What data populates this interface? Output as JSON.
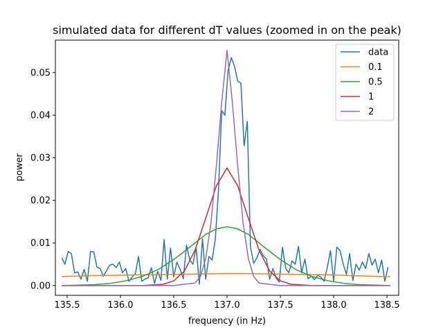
{
  "chart_data": {
    "type": "line",
    "title": "simulated data for different dT values (zoomed in on the peak)",
    "xlabel": "frequency (in Hz)",
    "ylabel": "power",
    "xlim": [
      135.39,
      138.61
    ],
    "ylim": [
      -0.0023,
      0.0576
    ],
    "xticks": [
      135.5,
      136.0,
      136.5,
      137.0,
      137.5,
      138.0,
      138.5
    ],
    "xtick_labels": [
      "135.5",
      "136.0",
      "136.5",
      "137.0",
      "137.5",
      "138.0",
      "138.5"
    ],
    "yticks": [
      0.0,
      0.01,
      0.02,
      0.03,
      0.04,
      0.05
    ],
    "ytick_labels": [
      "0.00",
      "0.01",
      "0.02",
      "0.03",
      "0.04",
      "0.05"
    ],
    "grid": false,
    "legend_position": "top-right",
    "series": [
      {
        "name": "data",
        "color": "#1f77b4",
        "x": [
          135.45,
          135.48,
          135.51,
          135.54,
          135.57,
          135.6,
          135.63,
          135.66,
          135.69,
          135.72,
          135.75,
          135.78,
          135.81,
          135.84,
          135.87,
          135.9,
          135.93,
          135.96,
          135.99,
          136.02,
          136.05,
          136.08,
          136.11,
          136.14,
          136.17,
          136.2,
          136.23,
          136.26,
          136.29,
          136.32,
          136.35,
          136.38,
          136.41,
          136.44,
          136.47,
          136.5,
          136.53,
          136.56,
          136.59,
          136.62,
          136.65,
          136.68,
          136.71,
          136.74,
          136.77,
          136.8,
          136.83,
          136.86,
          136.89,
          136.92,
          136.95,
          136.98,
          137.01,
          137.04,
          137.07,
          137.1,
          137.13,
          137.16,
          137.19,
          137.22,
          137.25,
          137.28,
          137.31,
          137.34,
          137.37,
          137.4,
          137.43,
          137.46,
          137.49,
          137.52,
          137.55,
          137.58,
          137.61,
          137.64,
          137.67,
          137.7,
          137.73,
          137.76,
          137.79,
          137.82,
          137.85,
          137.88,
          137.91,
          137.94,
          137.97,
          138.0,
          138.03,
          138.06,
          138.09,
          138.12,
          138.15,
          138.18,
          138.21,
          138.24,
          138.27,
          138.3,
          138.33,
          138.36,
          138.39,
          138.42,
          138.45,
          138.48,
          138.51
        ],
        "values": [
          0.0065,
          0.005,
          0.008,
          0.0075,
          0.003,
          0.0032,
          0.0015,
          0.0038,
          0.001,
          0.008,
          0.0079,
          0.0043,
          0.004,
          0.0022,
          0.0035,
          0.0048,
          0.005,
          0.0042,
          0.0055,
          0.003,
          0.004,
          0.001,
          0.002,
          0.0028,
          0.0068,
          0.001,
          0.0015,
          0.0018,
          0.0042,
          0.0005,
          0.0033,
          0.0012,
          0.0108,
          0.0015,
          0.0088,
          0.002,
          0.0055,
          0.0038,
          0.0016,
          0.0095,
          0.006,
          0.005,
          0.009,
          0.0003,
          0.011,
          0.0015,
          0.0068,
          0.006,
          0.0108,
          0.0225,
          0.041,
          0.04,
          0.0505,
          0.0535,
          0.0515,
          0.048,
          0.0475,
          0.0328,
          0.0385,
          0.009,
          0.0052,
          0.0065,
          0.0085,
          0.007,
          0.0062,
          0.0015,
          0.004,
          0.0018,
          0.0008,
          0.009,
          0.004,
          0.003,
          0.0058,
          0.005,
          0.0092,
          0.003,
          0.0062,
          0.0016,
          0.0022,
          0.0014,
          0.0024,
          0.002,
          0.001,
          0.0042,
          0.0082,
          0.001,
          0.009,
          0.0082,
          0.005,
          0.0026,
          0.0075,
          0.0012,
          0.005,
          0.0036,
          0.0055,
          0.004,
          0.0075,
          0.0048,
          0.0062,
          0.003,
          0.006,
          0.001,
          0.0043
        ]
      },
      {
        "name": "0.1",
        "color": "#ff7f0e",
        "x": [
          135.45,
          135.7,
          135.95,
          136.2,
          136.45,
          136.7,
          136.95,
          137.0,
          137.2,
          137.45,
          137.7,
          137.95,
          138.2,
          138.45,
          138.53
        ],
        "values": [
          0.0021,
          0.0023,
          0.0024,
          0.0025,
          0.0026,
          0.0027,
          0.0028,
          0.0028,
          0.0028,
          0.0027,
          0.0026,
          0.0025,
          0.0023,
          0.0021,
          0.0021
        ]
      },
      {
        "name": "0.5",
        "color": "#2ca02c",
        "x": [
          135.45,
          135.6,
          135.75,
          135.9,
          136.05,
          136.2,
          136.35,
          136.5,
          136.65,
          136.8,
          136.9,
          137.0,
          137.1,
          137.2,
          137.35,
          137.5,
          137.65,
          137.8,
          137.95,
          138.1,
          138.25,
          138.4,
          138.53
        ],
        "values": [
          0.0,
          0.0001,
          0.0002,
          0.0005,
          0.0011,
          0.0021,
          0.0037,
          0.0061,
          0.009,
          0.012,
          0.0133,
          0.0138,
          0.0133,
          0.012,
          0.009,
          0.0061,
          0.0037,
          0.0021,
          0.0011,
          0.0005,
          0.0002,
          0.0001,
          0.0
        ]
      },
      {
        "name": "1",
        "color": "#d62728",
        "x": [
          135.45,
          136.2,
          136.4,
          136.5,
          136.6,
          136.7,
          136.8,
          136.9,
          137.0,
          137.1,
          137.2,
          137.3,
          137.4,
          137.5,
          137.6,
          137.8,
          138.53
        ],
        "values": [
          0.0,
          0.0,
          0.0003,
          0.0011,
          0.0034,
          0.0083,
          0.0158,
          0.0234,
          0.0276,
          0.0234,
          0.0158,
          0.0083,
          0.0034,
          0.0011,
          0.0003,
          0.0,
          0.0
        ]
      },
      {
        "name": "2",
        "color": "#9467bd",
        "x": [
          135.45,
          136.5,
          136.7,
          136.75,
          136.8,
          136.85,
          136.9,
          136.95,
          137.0,
          137.05,
          137.1,
          137.15,
          137.2,
          137.25,
          137.3,
          137.5,
          138.53
        ],
        "values": [
          0.0,
          0.0,
          0.0006,
          0.0021,
          0.0063,
          0.0148,
          0.0281,
          0.043,
          0.0552,
          0.043,
          0.0281,
          0.0148,
          0.0063,
          0.0021,
          0.0006,
          0.0,
          0.0
        ]
      }
    ]
  }
}
